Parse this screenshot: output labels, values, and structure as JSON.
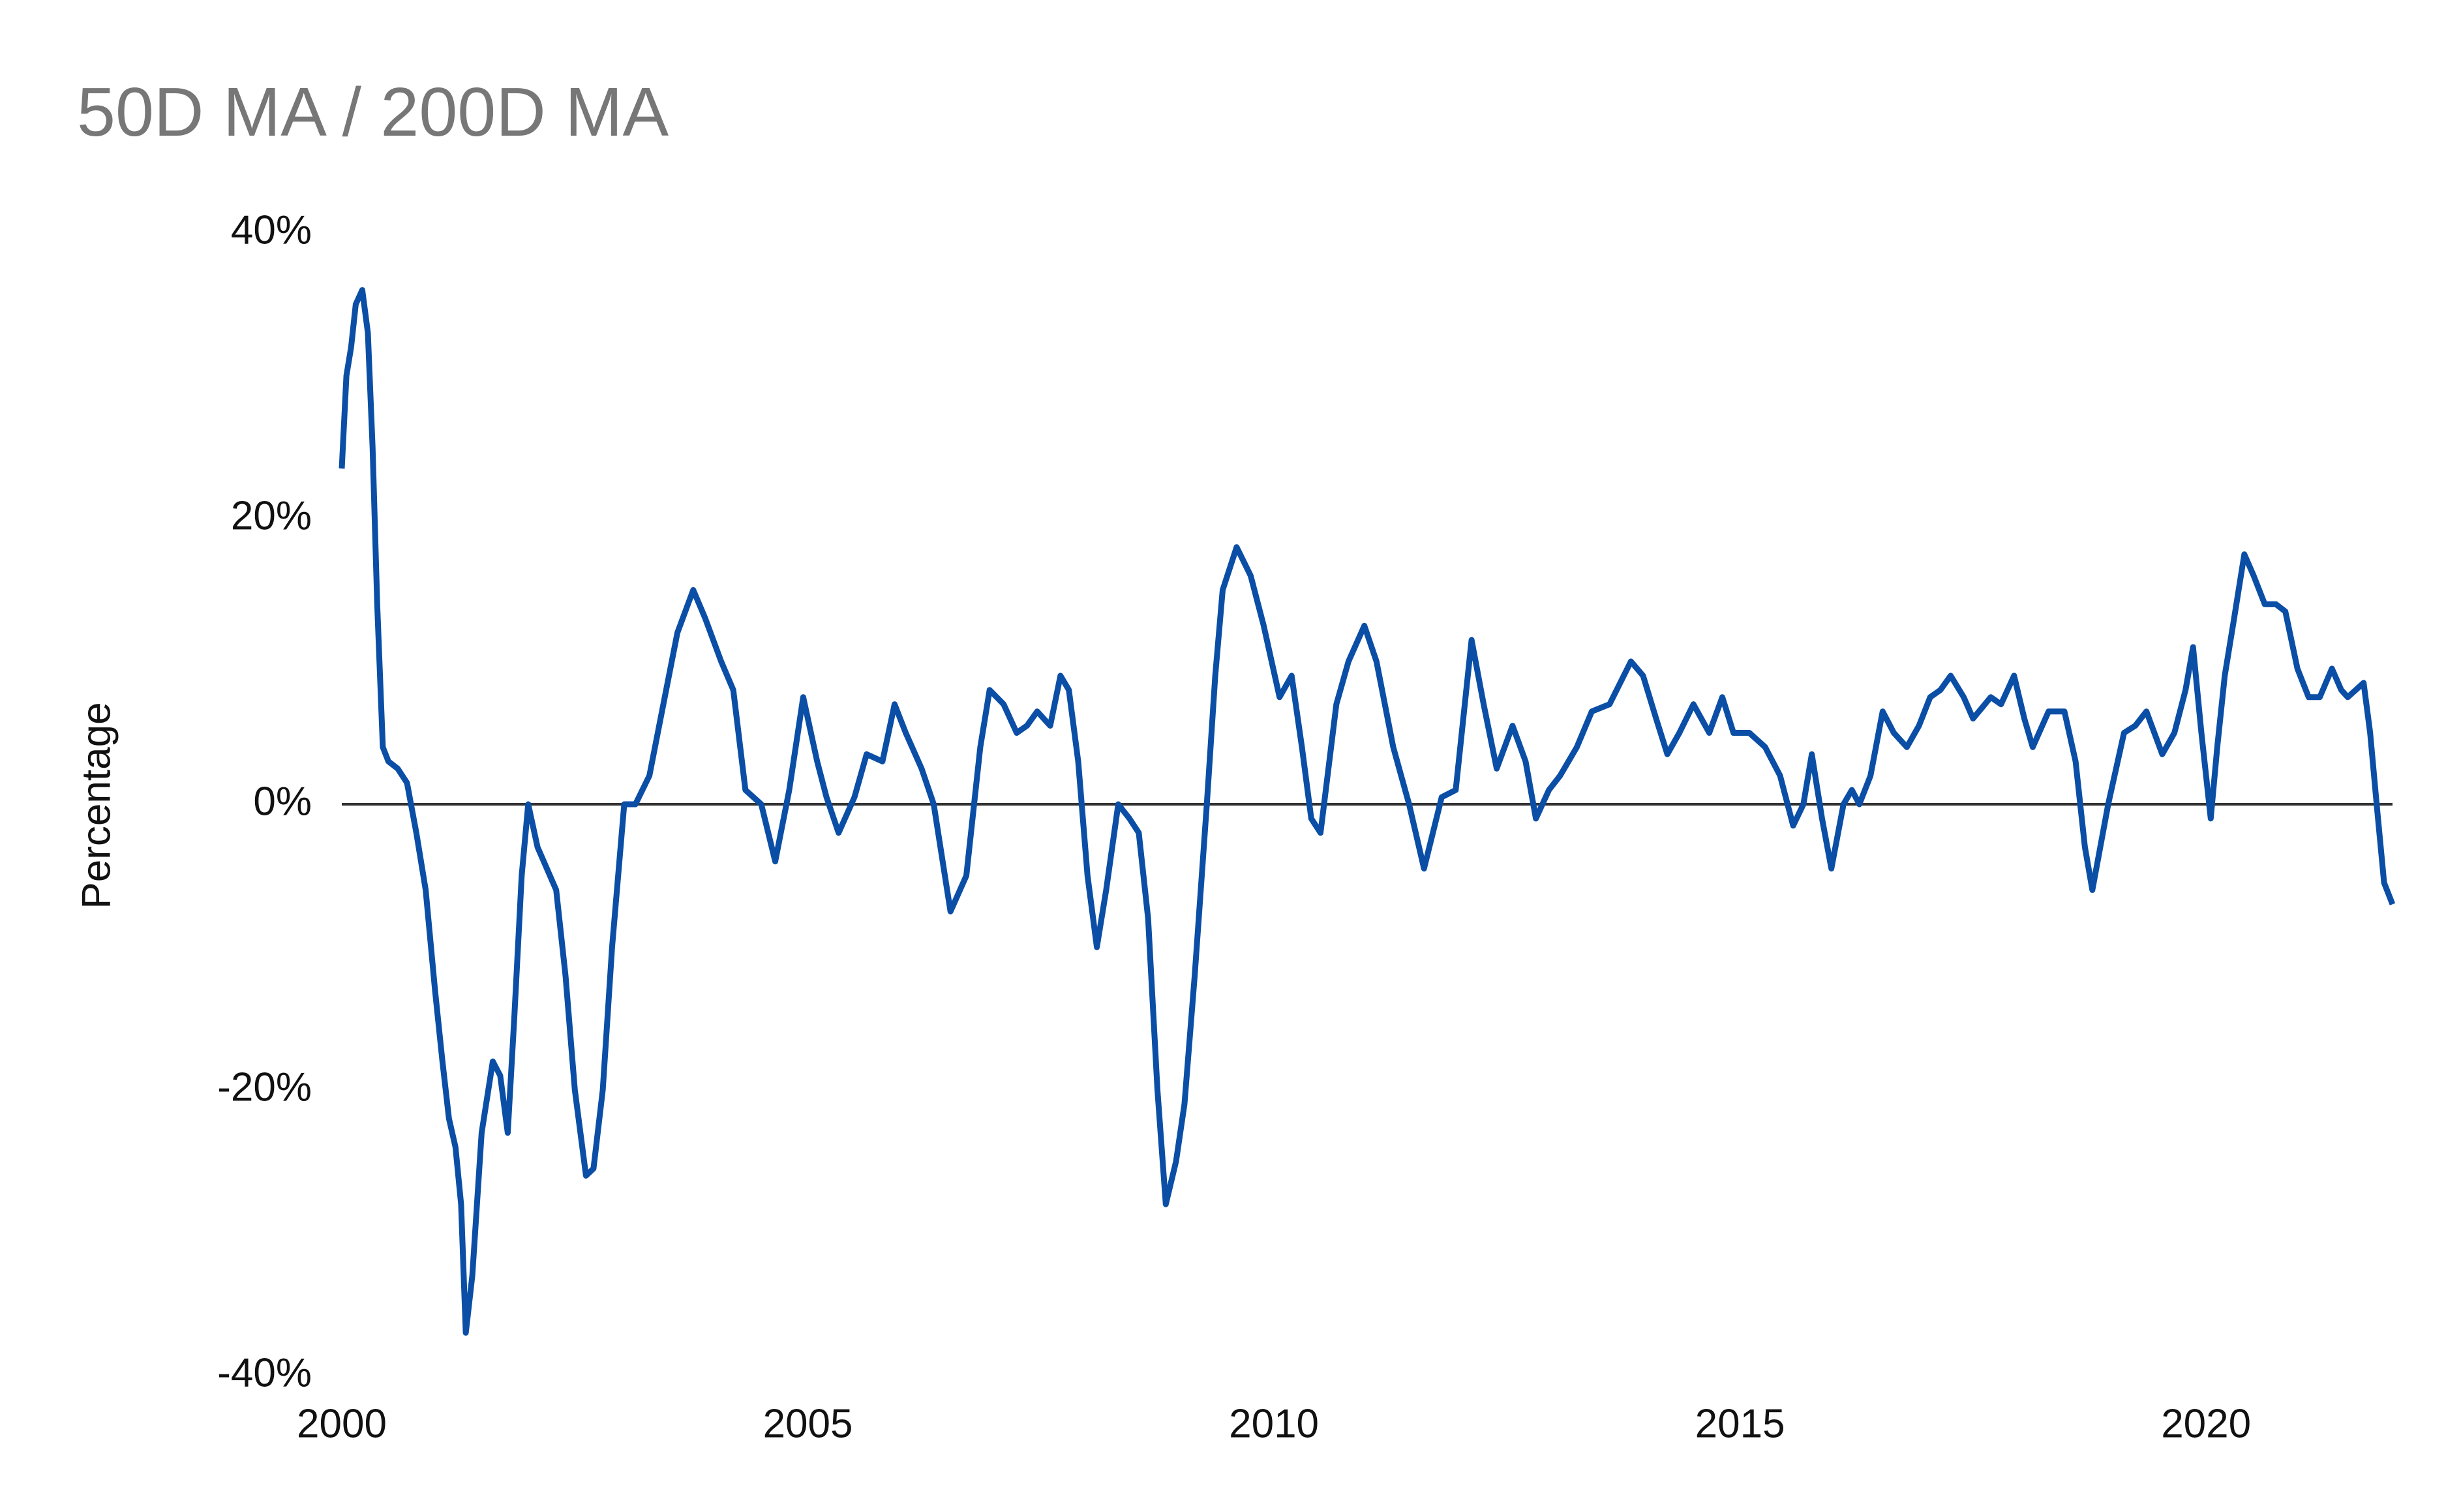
{
  "chart_data": {
    "type": "line",
    "title": "50D MA / 200D MA",
    "y_label": "Percentage",
    "x": [
      2000.0,
      2000.05,
      2000.1,
      2000.15,
      2000.22,
      2000.28,
      2000.33,
      2000.38,
      2000.44,
      2000.5,
      2000.6,
      2000.7,
      2000.8,
      2000.9,
      2001.0,
      2001.08,
      2001.15,
      2001.22,
      2001.28,
      2001.33,
      2001.4,
      2001.5,
      2001.62,
      2001.7,
      2001.78,
      2001.85,
      2001.93,
      2002.0,
      2002.1,
      2002.2,
      2002.3,
      2002.4,
      2002.5,
      2002.62,
      2002.7,
      2002.8,
      2002.9,
      2003.03,
      2003.15,
      2003.3,
      2003.45,
      2003.6,
      2003.77,
      2003.9,
      2004.07,
      2004.2,
      2004.33,
      2004.5,
      2004.65,
      2004.8,
      2004.95,
      2005.1,
      2005.2,
      2005.33,
      2005.5,
      2005.63,
      2005.8,
      2005.93,
      2006.05,
      2006.22,
      2006.35,
      2006.53,
      2006.7,
      2006.85,
      2006.95,
      2007.1,
      2007.24,
      2007.35,
      2007.46,
      2007.6,
      2007.71,
      2007.8,
      2007.9,
      2008.0,
      2008.1,
      2008.2,
      2008.33,
      2008.45,
      2008.55,
      2008.65,
      2008.75,
      2008.84,
      2008.95,
      2009.04,
      2009.15,
      2009.28,
      2009.37,
      2009.45,
      2009.6,
      2009.75,
      2009.89,
      2010.06,
      2010.19,
      2010.3,
      2010.4,
      2010.5,
      2010.67,
      2010.8,
      2010.97,
      2011.1,
      2011.28,
      2011.45,
      2011.61,
      2011.8,
      2011.95,
      2012.12,
      2012.25,
      2012.39,
      2012.56,
      2012.7,
      2012.81,
      2012.95,
      2013.07,
      2013.25,
      2013.41,
      2013.6,
      2013.83,
      2013.96,
      2014.1,
      2014.22,
      2014.35,
      2014.5,
      2014.67,
      2014.81,
      2014.93,
      2015.1,
      2015.27,
      2015.43,
      2015.57,
      2015.68,
      2015.77,
      2015.88,
      2015.98,
      2016.11,
      2016.2,
      2016.28,
      2016.4,
      2016.53,
      2016.65,
      2016.79,
      2016.92,
      2017.04,
      2017.15,
      2017.26,
      2017.4,
      2017.5,
      2017.69,
      2017.8,
      2017.94,
      2018.05,
      2018.14,
      2018.31,
      2018.48,
      2018.6,
      2018.7,
      2018.78,
      2018.95,
      2019.12,
      2019.24,
      2019.36,
      2019.53,
      2019.66,
      2019.78,
      2019.86,
      2019.95,
      2020.05,
      2020.12,
      2020.2,
      2020.3,
      2020.41,
      2020.51,
      2020.63,
      2020.75,
      2020.85,
      2020.98,
      2021.1,
      2021.22,
      2021.35,
      2021.45,
      2021.52,
      2021.69,
      2021.76,
      2021.83,
      2021.91,
      2022.0
    ],
    "series": [
      {
        "name": "50D MA / 200D MA",
        "color": "#0b4ea6",
        "values": [
          23.5,
          30,
          32,
          35,
          36,
          33,
          25,
          14,
          4,
          3,
          2.5,
          1.5,
          -2,
          -6,
          -13,
          -18,
          -22,
          -24,
          -28,
          -37,
          -33,
          -23,
          -18,
          -19,
          -23,
          -15,
          -5,
          0,
          -3,
          -4.5,
          -6,
          -12,
          -20,
          -26,
          -25.5,
          -20,
          -10,
          0,
          0,
          2,
          7,
          12,
          15,
          13,
          10,
          8,
          1,
          0,
          -4,
          1,
          7.5,
          3,
          0.5,
          -2,
          0.5,
          3.5,
          3,
          7,
          5,
          2.5,
          0,
          -7.5,
          -5,
          4,
          8,
          7,
          5,
          5.5,
          6.5,
          5.5,
          9,
          8,
          3,
          -5,
          -10,
          -6,
          0,
          -1,
          -2,
          -8,
          -20,
          -28,
          -25,
          -21,
          -12,
          0,
          9,
          15,
          18,
          16,
          12.5,
          7.5,
          9,
          4,
          -1,
          -2,
          7,
          10,
          12.5,
          10,
          4,
          0,
          -4.5,
          0.5,
          1,
          11.5,
          7,
          2.5,
          5.5,
          3,
          -1,
          1,
          2,
          4,
          6.5,
          7,
          10,
          9,
          6,
          3.5,
          5,
          7,
          5,
          7.5,
          5,
          5,
          4,
          2,
          -1.5,
          0,
          3.5,
          -1,
          -4.5,
          0,
          1,
          0,
          2,
          6.5,
          5,
          4,
          5.5,
          7.5,
          8,
          9,
          7.5,
          6,
          7.5,
          7,
          9,
          6,
          4,
          6.5,
          6.5,
          3,
          -3,
          -6,
          0,
          5,
          5.5,
          6.5,
          3.5,
          5,
          8,
          11,
          5,
          -1,
          4,
          9,
          13,
          17.5,
          16,
          14,
          14,
          13.5,
          9.5,
          7.5,
          7.5,
          9.5,
          8,
          7.5,
          8.5,
          5,
          0,
          -5.5,
          -7
        ]
      }
    ],
    "xlim": [
      2000,
      2022
    ],
    "xticks": [
      2000,
      2005,
      2010,
      2015,
      2020
    ],
    "ylim": [
      -40,
      40
    ],
    "yticks": [
      {
        "value": 40,
        "label": "40%"
      },
      {
        "value": 20,
        "label": "20%"
      },
      {
        "value": 0,
        "label": "0%"
      },
      {
        "value": -20,
        "label": "-20%"
      },
      {
        "value": -40,
        "label": "-40%"
      }
    ],
    "reference_line": 0
  }
}
